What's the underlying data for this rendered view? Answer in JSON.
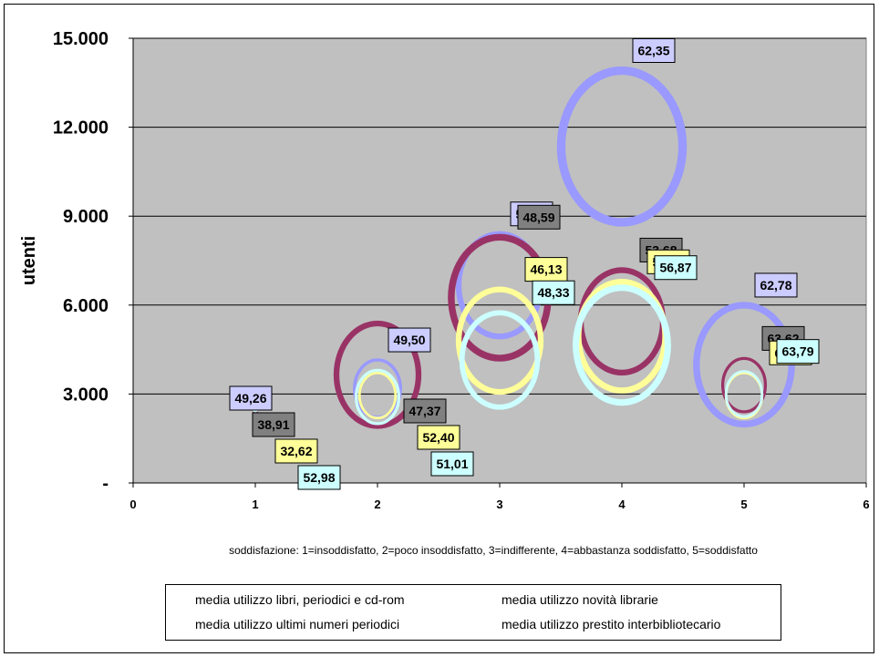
{
  "chart_data": {
    "type": "bubble",
    "xlabel": "soddisfazione: 1=insoddisfatto, 2=poco insoddisfatto, 3=indifferente, 4=abbastanza soddisfatto, 5=soddisfatto",
    "ylabel": "utenti",
    "xlim": [
      0,
      6
    ],
    "ylim": [
      0,
      15000
    ],
    "x_ticks": [
      "0",
      "1",
      "2",
      "3",
      "4",
      "5",
      "6"
    ],
    "y_ticks": [
      "-",
      "3.000",
      "6.000",
      "9.000",
      "12.000",
      "15.000"
    ],
    "grid": "horizontal",
    "legend_position": "bottom",
    "series": [
      {
        "name": "media utilizzo libri, periodici e cd-rom",
        "color": "#9999ff",
        "label_bg": "#ccccff",
        "points": [
          {
            "x": 1,
            "y": 2460,
            "label": "49,26",
            "size": 0.2
          },
          {
            "x": 2,
            "y": 3180,
            "label": "49,50",
            "size": 2.8
          },
          {
            "x": 3,
            "y": 6670,
            "label": "52,58",
            "size": 5.0
          },
          {
            "x": 4,
            "y": 11350,
            "label": "62,35",
            "size": 7.4
          },
          {
            "x": 5,
            "y": 3990,
            "label": "62,78",
            "size": 5.8
          }
        ]
      },
      {
        "name": "media utilizzo novità librarie",
        "color": "#993366",
        "label_bg": "#808080",
        "points": [
          {
            "x": 1,
            "y": 2400,
            "label": "38,91",
            "size": 0.15
          },
          {
            "x": 2,
            "y": 3650,
            "label": "47,37",
            "size": 5.0
          },
          {
            "x": 3,
            "y": 6250,
            "label": "48,59",
            "size": 5.9
          },
          {
            "x": 4,
            "y": 5450,
            "label": "53,68",
            "size": 5.0
          },
          {
            "x": 5,
            "y": 3300,
            "label": "63,62",
            "size": 2.6
          }
        ]
      },
      {
        "name": "media utilizzo ultimi numeri periodici",
        "color": "#ffff99",
        "label_bg": "#ffff99",
        "points": [
          {
            "x": 1,
            "y": 2450,
            "label": "32,62",
            "size": 0.1
          },
          {
            "x": 2,
            "y": 2950,
            "label": "52,40",
            "size": 2.2
          },
          {
            "x": 3,
            "y": 4800,
            "label": "46,13",
            "size": 5.0
          },
          {
            "x": 4,
            "y": 4950,
            "label": "54,95",
            "size": 5.3
          },
          {
            "x": 5,
            "y": 2950,
            "label": "67,30",
            "size": 2.2
          }
        ]
      },
      {
        "name": "media utilizzo prestito interbibliotecario",
        "color": "#ccffff",
        "label_bg": "#ccffff",
        "points": [
          {
            "x": 1,
            "y": 2450,
            "label": "52,98",
            "size": 0.1
          },
          {
            "x": 2,
            "y": 2900,
            "label": "51,01",
            "size": 2.6
          },
          {
            "x": 3,
            "y": 4150,
            "label": "48,33",
            "size": 4.6
          },
          {
            "x": 4,
            "y": 4650,
            "label": "56,87",
            "size": 5.6
          },
          {
            "x": 5,
            "y": 3000,
            "label": "63,79",
            "size": 2.2
          }
        ]
      }
    ]
  }
}
